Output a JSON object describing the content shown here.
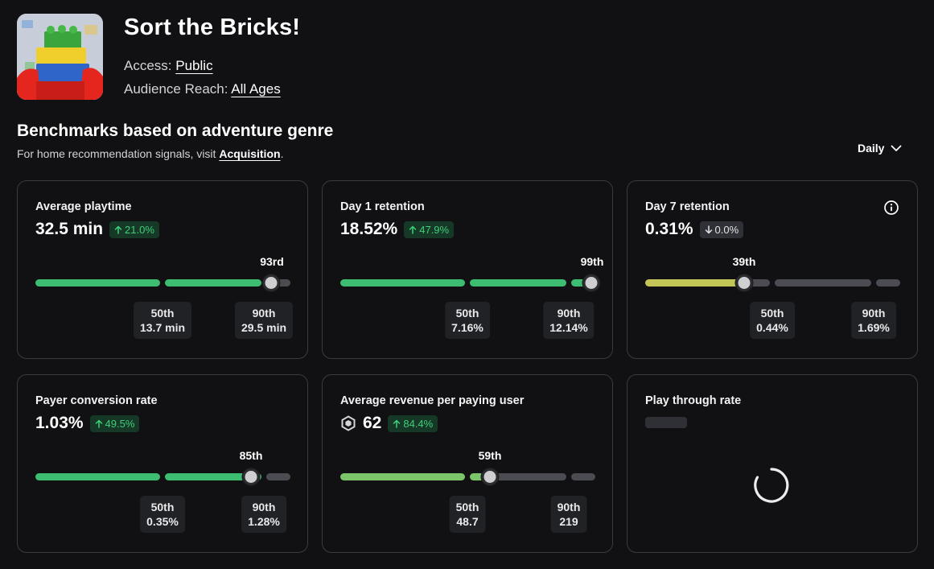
{
  "header": {
    "title": "Sort the Bricks!",
    "access_label": "Access:",
    "access_value": "Public",
    "reach_label": "Audience Reach:",
    "reach_value": "All Ages"
  },
  "benchmarks": {
    "title": "Benchmarks based on adventure genre",
    "subtitle_prefix": "For home recommendation signals, visit ",
    "subtitle_link": "Acquisition",
    "subtitle_suffix": ".",
    "period": "Daily"
  },
  "colors": {
    "green": "#3dbd72",
    "light_green": "#7cc46a",
    "olive": "#c3c556",
    "gray": "#4b4c52"
  },
  "cards": [
    {
      "title": "Average playtime",
      "value": "32.5 min",
      "delta": "21.0%",
      "delta_dir": "up",
      "rank": "93rd",
      "p50_label": "50th",
      "p50_value": "13.7 min",
      "p90_label": "90th",
      "p90_value": "29.5 min",
      "percentile": 93
    },
    {
      "title": "Day 1 retention",
      "value": "18.52%",
      "delta": "47.9%",
      "delta_dir": "up",
      "rank": "99th",
      "p50_label": "50th",
      "p50_value": "7.16%",
      "p90_label": "90th",
      "p90_value": "12.14%",
      "percentile": 99
    },
    {
      "title": "Day 7 retention",
      "value": "0.31%",
      "delta": "0.0%",
      "delta_dir": "down",
      "rank": "39th",
      "p50_label": "50th",
      "p50_value": "0.44%",
      "p90_label": "90th",
      "p90_value": "1.69%",
      "percentile": 39,
      "icon": "info-icon"
    },
    {
      "title": "Payer conversion rate",
      "value": "1.03%",
      "delta": "49.5%",
      "delta_dir": "up",
      "rank": "85th",
      "p50_label": "50th",
      "p50_value": "0.35%",
      "p90_label": "90th",
      "p90_value": "1.28%",
      "percentile": 85
    },
    {
      "title": "Average revenue per paying user",
      "value": "62",
      "value_icon": "robux-icon",
      "delta": "84.4%",
      "delta_dir": "up",
      "rank": "59th",
      "p50_label": "50th",
      "p50_value": "48.7",
      "p90_label": "90th",
      "p90_value": "219",
      "percentile": 59
    },
    {
      "title": "Play through rate",
      "state": "loading",
      "icon": "loading-spinner-icon"
    }
  ]
}
